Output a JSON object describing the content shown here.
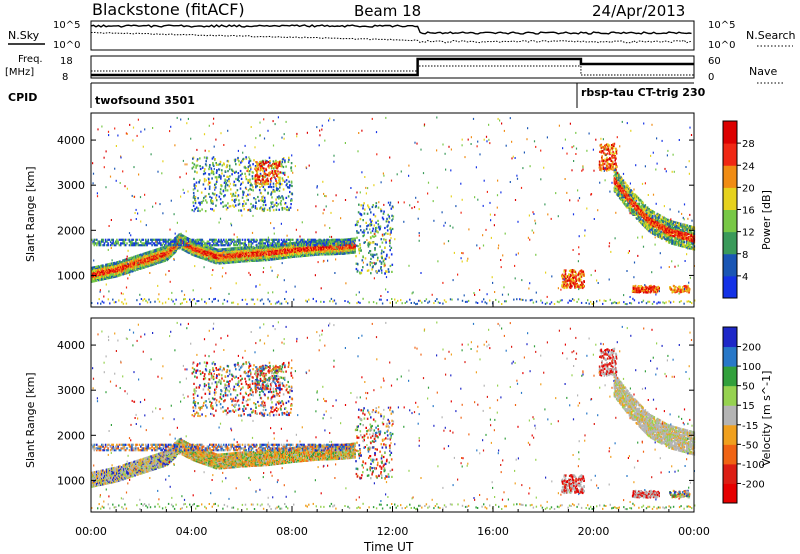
{
  "header": {
    "station": "Blackstone (fitACF)",
    "beam": "Beam 18",
    "date": "24/Apr/2013"
  },
  "sky_panel": {
    "left_label": "N.Sky",
    "right_label": "N.Search",
    "left_ticks": [
      "10^5",
      "10^0"
    ],
    "right_ticks": [
      "10^5",
      "10^0"
    ]
  },
  "freq_panel": {
    "left_label_1": "Freq.",
    "left_label_2": "[MHz]",
    "right_label": "Nave",
    "left_ticks": [
      "18",
      "8"
    ],
    "right_ticks": [
      "60",
      "0"
    ]
  },
  "cpid": {
    "label": "CPID",
    "segments": [
      {
        "start_h": 0,
        "end_h": 19.5,
        "name": "twofsound 3501"
      },
      {
        "start_h": 19.5,
        "end_h": 24,
        "name": "rbsp-tau CT-trig 230"
      }
    ]
  },
  "chart_data": [
    {
      "type": "heatmap",
      "name": "power",
      "ylabel": "Slant Range [km]",
      "xlim": [
        0,
        24
      ],
      "ylim": [
        300,
        4600
      ],
      "y_ticks": [
        1000,
        2000,
        3000,
        4000
      ],
      "colorbar": {
        "label": "Power [dB]",
        "ticks": [
          "4",
          "8",
          "12",
          "16",
          "20",
          "24",
          "28"
        ],
        "colors": [
          "#1432e6",
          "#1a56b4",
          "#3a9a5a",
          "#78c846",
          "#e6d21e",
          "#f08c14",
          "#f02814",
          "#dc0000"
        ]
      }
    },
    {
      "type": "heatmap",
      "name": "velocity",
      "ylabel": "Slant Range [km]",
      "xlim": [
        0,
        24
      ],
      "ylim": [
        300,
        4600
      ],
      "y_ticks": [
        1000,
        2000,
        3000,
        4000
      ],
      "colorbar": {
        "label": "Velocity [m s^-1]",
        "ticks": [
          "200",
          "100",
          "50",
          "15",
          "-15",
          "-50",
          "-100",
          "-200"
        ],
        "colors": [
          "#1e28c8",
          "#2878c8",
          "#32a03c",
          "#96d250",
          "#b4b4b4",
          "#f0a01e",
          "#f06414",
          "#dc1e14",
          "#e60000"
        ]
      }
    }
  ],
  "x_axis": {
    "label": "Time UT",
    "ticks": [
      "00:00",
      "04:00",
      "08:00",
      "12:00",
      "16:00",
      "20:00",
      "00:00"
    ]
  },
  "features": {
    "main_band": [
      [
        0,
        1000
      ],
      [
        1,
        1120
      ],
      [
        2,
        1300
      ],
      [
        3,
        1480
      ],
      [
        3.5,
        1750
      ],
      [
        4,
        1600
      ],
      [
        5,
        1400
      ],
      [
        6,
        1450
      ],
      [
        7,
        1480
      ],
      [
        8,
        1550
      ],
      [
        9,
        1600
      ],
      [
        10,
        1620
      ],
      [
        10.5,
        1650
      ]
    ],
    "band_width_km": 320,
    "upper_band_range": [
      0,
      10.5,
      1650,
      1800
    ],
    "patches": [
      {
        "t0": 4,
        "t1": 8,
        "r0": 2400,
        "r1": 3600,
        "n": 140,
        "kind": "sparse"
      },
      {
        "t0": 6.5,
        "t1": 7.5,
        "r0": 3000,
        "r1": 3500,
        "n": 40,
        "kind": "hot"
      },
      {
        "t0": 10.5,
        "t1": 12,
        "r0": 1000,
        "r1": 2600,
        "n": 60,
        "kind": "sparse"
      },
      {
        "t0": 18.7,
        "t1": 19.6,
        "r0": 700,
        "r1": 1100,
        "n": 50,
        "kind": "hot"
      },
      {
        "t0": 20.2,
        "t1": 20.9,
        "r0": 3300,
        "r1": 3900,
        "n": 40,
        "kind": "hot"
      },
      {
        "t0": 21.5,
        "t1": 22.6,
        "r0": 600,
        "r1": 750,
        "n": 35,
        "kind": "hot"
      },
      {
        "t0": 23.0,
        "t1": 23.8,
        "r0": 600,
        "r1": 750,
        "n": 25,
        "kind": "mid"
      }
    ],
    "late_arc": [
      [
        20.8,
        3100
      ],
      [
        21.5,
        2600
      ],
      [
        22.2,
        2200
      ],
      [
        23.0,
        1950
      ],
      [
        24,
        1800
      ]
    ]
  }
}
